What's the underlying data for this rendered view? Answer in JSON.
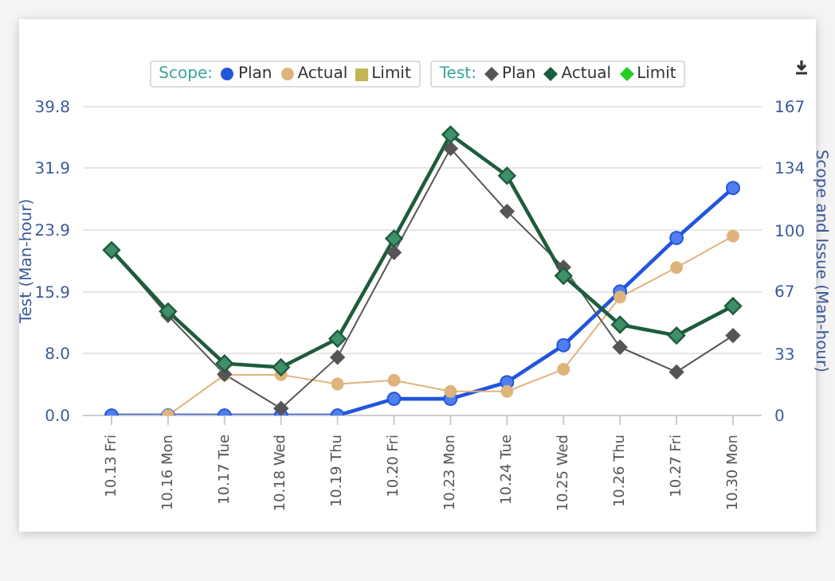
{
  "chart_data": {
    "type": "line",
    "ylabel": "Test (Man-hour)",
    "y2label": "Scope and Issue (Man-hour)",
    "legend_title": [
      "Scope:",
      "Test:"
    ],
    "categories": [
      "10.13 Fri",
      "10.16 Mon",
      "10.17 Tue",
      "10.18 Wed",
      "10.19 Thu",
      "10.20 Fri",
      "10.23 Mon",
      "10.24 Tue",
      "10.25 Wed",
      "10.26 Thu",
      "10.27 Fri",
      "10.30 Mon"
    ],
    "series": [
      {
        "name": "Plan",
        "color": "#2255dd",
        "axis": "y2",
        "marker": "circle",
        "values": [
          0,
          0,
          0,
          0,
          0,
          9,
          9,
          18,
          38,
          67,
          96,
          123
        ]
      },
      {
        "name": "Actual",
        "color": "#dfb47c",
        "axis": "y2",
        "marker": "circle",
        "values": [
          null,
          0,
          22,
          22,
          17,
          19,
          13,
          13,
          25,
          64,
          80,
          97
        ]
      },
      {
        "name": "Limit",
        "color": "#c2b553",
        "axis": "y2",
        "marker": "square",
        "values": [
          null,
          null,
          null,
          null,
          null,
          null,
          null,
          null,
          null,
          null,
          null,
          null
        ]
      },
      {
        "name": "Plan",
        "color": "#555555",
        "marker": "diamond",
        "values": [
          21.3,
          12.9,
          5.3,
          0.9,
          7.5,
          21.0,
          34.4,
          26.3,
          19.1,
          8.8,
          5.6,
          10.3
        ]
      },
      {
        "name": "Actual",
        "color": "#1d5c3c",
        "marker": "diamond",
        "values": [
          21.3,
          13.4,
          6.7,
          6.2,
          9.9,
          22.8,
          36.2,
          30.9,
          18.0,
          11.7,
          10.3,
          14.1
        ]
      },
      {
        "name": "Limit",
        "color": "#22cc22",
        "marker": "diamond",
        "values": [
          null,
          null,
          null,
          null,
          null,
          null,
          null,
          null,
          null,
          null,
          null,
          null
        ]
      }
    ],
    "ylim": [
      0,
      39.8
    ],
    "yticks": [
      {
        "value": 0,
        "label": "0.0"
      },
      {
        "value": 8,
        "label": "8.0"
      },
      15.9,
      23.9,
      31.9,
      39.8
    ],
    "y2lim": [
      0,
      167
    ],
    "y2ticks": [
      0,
      33,
      67,
      100,
      134,
      167
    ],
    "grid": "y",
    "legend": "top"
  }
}
